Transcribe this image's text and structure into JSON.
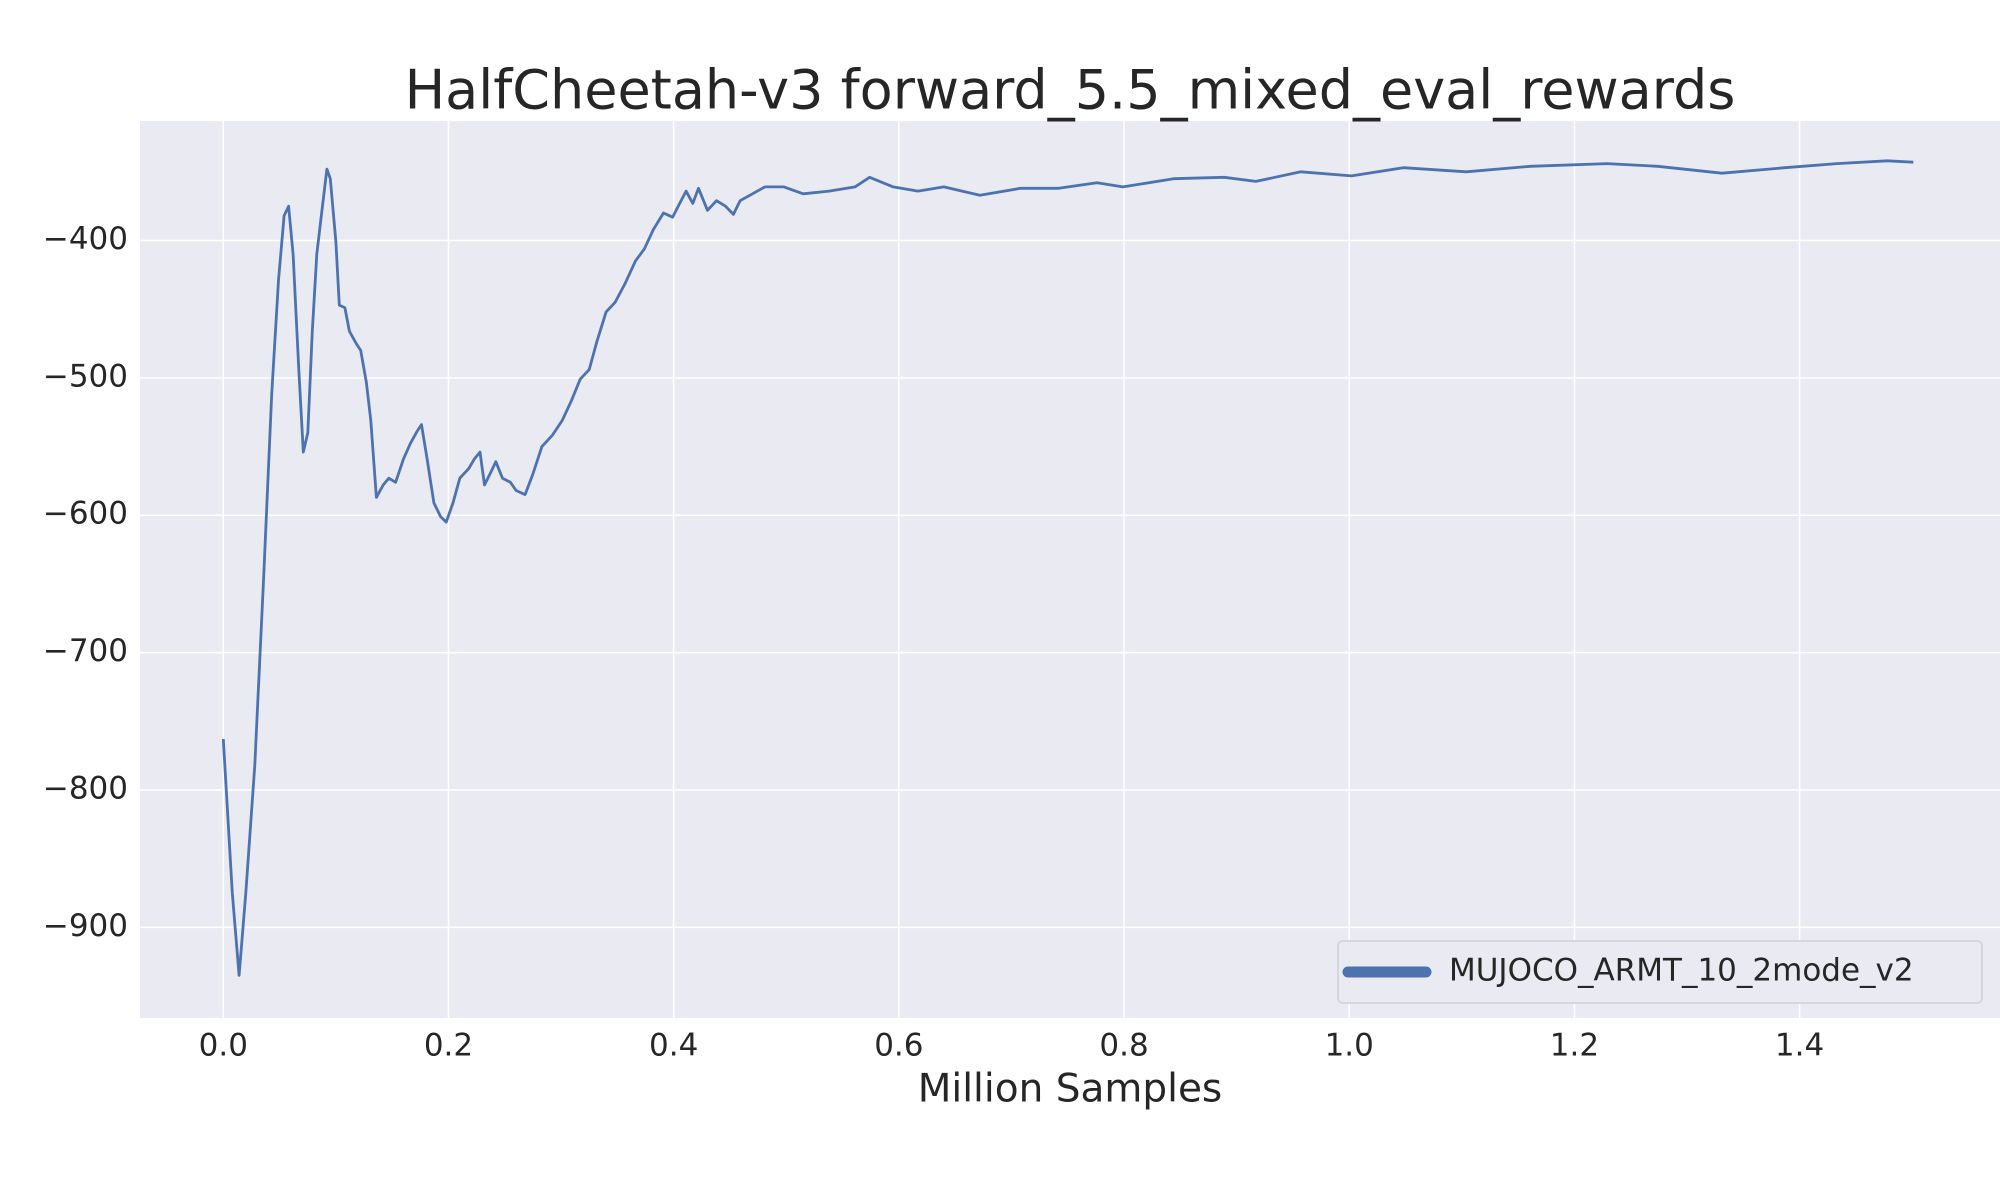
{
  "chart_data": {
    "type": "line",
    "title": "HalfCheetah-v3 forward_5.5_mixed_eval_rewards",
    "x_label": "Million Samples",
    "x": [
      0.0,
      0.008,
      0.014,
      0.02,
      0.028,
      0.036,
      0.043,
      0.049,
      0.054,
      0.058,
      0.062,
      0.067,
      0.071,
      0.075,
      0.079,
      0.083,
      0.087,
      0.092,
      0.095,
      0.1,
      0.103,
      0.108,
      0.112,
      0.118,
      0.122,
      0.127,
      0.131,
      0.136,
      0.142,
      0.147,
      0.153,
      0.16,
      0.166,
      0.172,
      0.176,
      0.181,
      0.187,
      0.193,
      0.198,
      0.204,
      0.21,
      0.218,
      0.223,
      0.228,
      0.232,
      0.238,
      0.242,
      0.248,
      0.255,
      0.26,
      0.268,
      0.275,
      0.283,
      0.292,
      0.301,
      0.309,
      0.317,
      0.325,
      0.332,
      0.34,
      0.348,
      0.357,
      0.366,
      0.374,
      0.382,
      0.391,
      0.399,
      0.404,
      0.411,
      0.417,
      0.422,
      0.43,
      0.438,
      0.446,
      0.453,
      0.459,
      0.47,
      0.481,
      0.498,
      0.515,
      0.538,
      0.561,
      0.574,
      0.595,
      0.617,
      0.64,
      0.672,
      0.708,
      0.742,
      0.776,
      0.799,
      0.844,
      0.889,
      0.917,
      0.957,
      1.002,
      1.048,
      1.104,
      1.161,
      1.229,
      1.274,
      1.331,
      1.387,
      1.433,
      1.478,
      1.501
    ],
    "series": [
      {
        "name": "MUJOCO_ARMT_10_2mode_v2",
        "color": "#4c72b0",
        "values": [
          -763,
          -875,
          -935,
          -875,
          -782,
          -643,
          -512,
          -429,
          -382,
          -375,
          -410,
          -494,
          -554,
          -540,
          -466,
          -410,
          -382,
          -348,
          -355,
          -401,
          -447,
          -449,
          -466,
          -475,
          -480,
          -503,
          -531,
          -587,
          -578,
          -573,
          -576,
          -559,
          -548,
          -539,
          -534,
          -559,
          -591,
          -601,
          -605,
          -591,
          -573,
          -566,
          -559,
          -554,
          -578,
          -568,
          -561,
          -573,
          -576,
          -582,
          -585,
          -570,
          -550,
          -542,
          -531,
          -517,
          -501,
          -494,
          -473,
          -452,
          -445,
          -431,
          -415,
          -406,
          -392,
          -380,
          -383,
          -375,
          -364,
          -373,
          -362,
          -378,
          -371,
          -375,
          -381,
          -371,
          -366,
          -361,
          -361,
          -366,
          -364,
          -361,
          -354,
          -361,
          -364,
          -361,
          -367,
          -362,
          -362,
          -358,
          -361,
          -355,
          -354,
          -357,
          -350,
          -353,
          -347,
          -350,
          -346,
          -344,
          -346,
          -351,
          -347,
          -344,
          -342,
          -343
        ]
      }
    ],
    "xlim": [
      -0.074,
      1.578
    ],
    "ylim": [
      -966,
      -313
    ],
    "xticks": [
      {
        "value": 0,
        "label": "0.0"
      },
      0.2,
      0.4,
      0.6,
      0.8,
      {
        "value": 1,
        "label": "1.0"
      },
      1.2,
      1.4
    ],
    "yticks": [
      {
        "value": -900,
        "label": "−900"
      },
      {
        "value": -800,
        "label": "−800"
      },
      {
        "value": -700,
        "label": "−700"
      },
      {
        "value": -600,
        "label": "−600"
      },
      {
        "value": -500,
        "label": "−500"
      },
      {
        "value": -400,
        "label": "−400"
      }
    ],
    "grid": true,
    "legend": "lower right"
  }
}
